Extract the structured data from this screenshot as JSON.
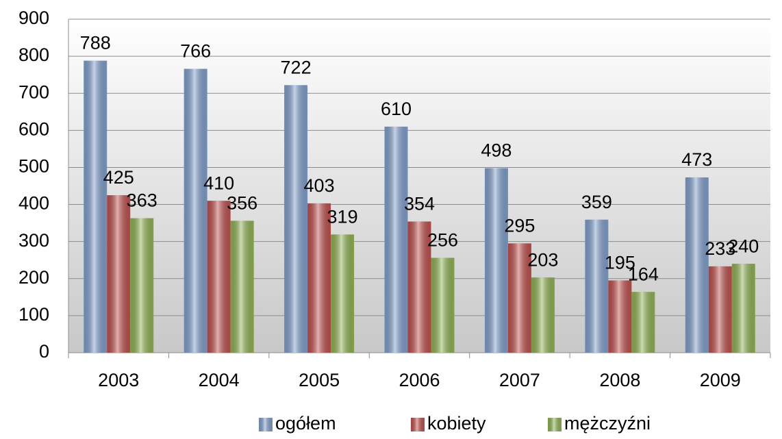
{
  "chart_data": {
    "type": "bar",
    "categories": [
      "2003",
      "2004",
      "2005",
      "2006",
      "2007",
      "2008",
      "2009"
    ],
    "series": [
      {
        "name": "ogółem",
        "color": "#7f9fcc",
        "values": [
          788,
          766,
          722,
          610,
          498,
          359,
          473
        ]
      },
      {
        "name": "kobiety",
        "color": "#c0504d",
        "values": [
          425,
          410,
          403,
          354,
          295,
          195,
          233
        ]
      },
      {
        "name": "mężczyźni",
        "color": "#8fb251",
        "values": [
          363,
          356,
          319,
          256,
          203,
          164,
          240
        ]
      }
    ],
    "ylim": [
      0,
      900
    ],
    "yticks": [
      0,
      100,
      200,
      300,
      400,
      500,
      600,
      700,
      800,
      900
    ],
    "grid": true,
    "legend": "bottom"
  }
}
